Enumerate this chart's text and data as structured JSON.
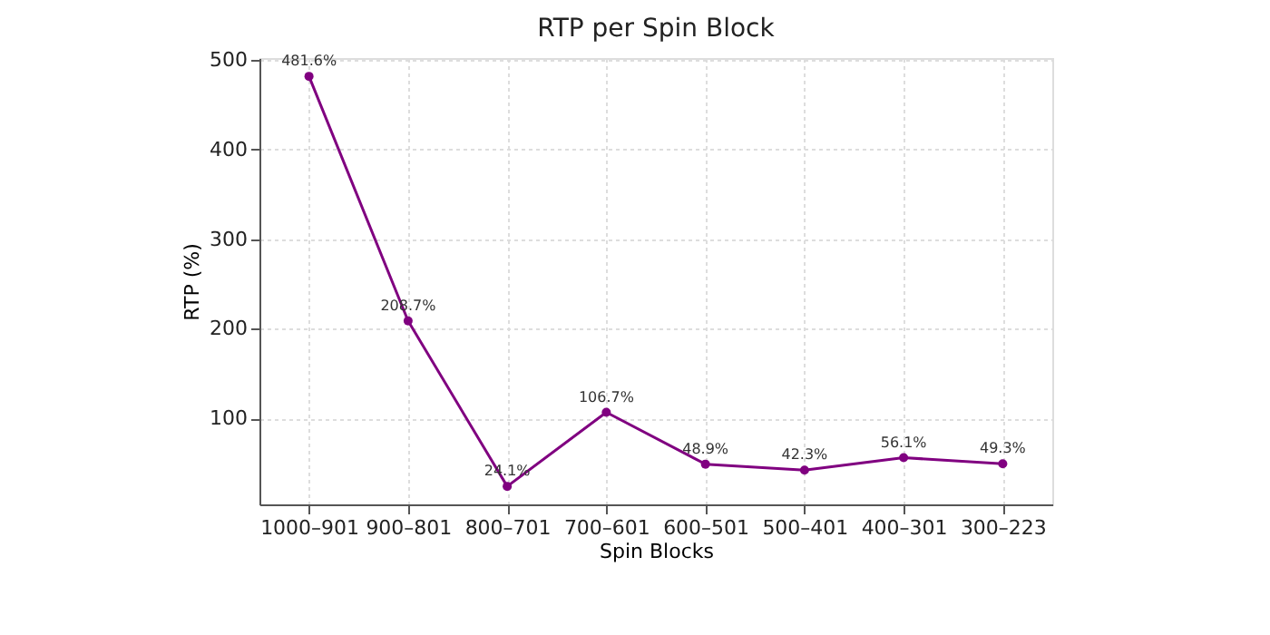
{
  "chart_data": {
    "type": "line",
    "title": "RTP per Spin Block",
    "xlabel": "Spin Blocks",
    "ylabel": "RTP (%)",
    "categories": [
      "1000–901",
      "900–801",
      "800–701",
      "700–601",
      "600–501",
      "500–401",
      "400–301",
      "300–223"
    ],
    "series": [
      {
        "color": "#800080",
        "values": [
          481.6,
          208.7,
          24.1,
          106.7,
          48.9,
          42.3,
          56.1,
          49.3
        ],
        "value_labels": [
          "481.6%",
          "208.7%",
          "24.1%",
          "106.7%",
          "48.9%",
          "42.3%",
          "56.1%",
          "49.3%"
        ]
      }
    ],
    "ylim": [
      4,
      502
    ],
    "yticks": [
      100,
      200,
      300,
      400,
      500
    ],
    "grid": true,
    "marker": "circle",
    "line_style": "solid"
  }
}
